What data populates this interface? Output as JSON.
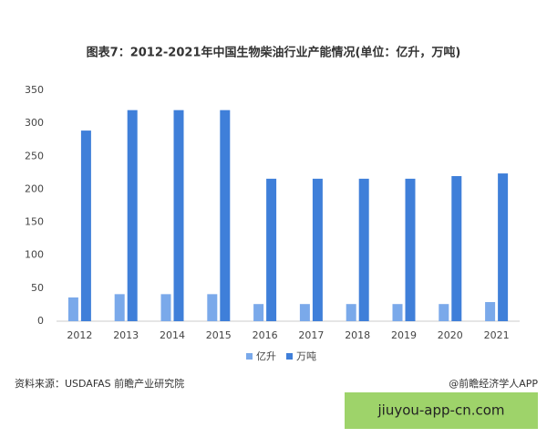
{
  "chart_data": {
    "type": "bar",
    "title": "图表7：2012-2021年中国生物柴油行业产能情况(单位：亿升，万吨)",
    "categories": [
      "2012",
      "2013",
      "2014",
      "2015",
      "2016",
      "2017",
      "2018",
      "2019",
      "2020",
      "2021"
    ],
    "series": [
      {
        "name": "亿升",
        "color": "#7aa9ea",
        "values": [
          36,
          41,
          41,
          41,
          26,
          26,
          26,
          26,
          26,
          29
        ]
      },
      {
        "name": "万吨",
        "color": "#3f7fd9",
        "values": [
          289,
          320,
          320,
          320,
          216,
          216,
          216,
          216,
          220,
          224
        ]
      }
    ],
    "ylim": [
      0,
      350
    ],
    "yticks": [
      0,
      50,
      100,
      150,
      200,
      250,
      300,
      350
    ],
    "grid": false,
    "legend": "bottom"
  },
  "footer": {
    "source": "资料来源：USDAFAS 前瞻产业研究院",
    "credit": "@前瞻经济学人APP"
  },
  "overlay": {
    "text": "jiuyou-app-cn.com"
  }
}
